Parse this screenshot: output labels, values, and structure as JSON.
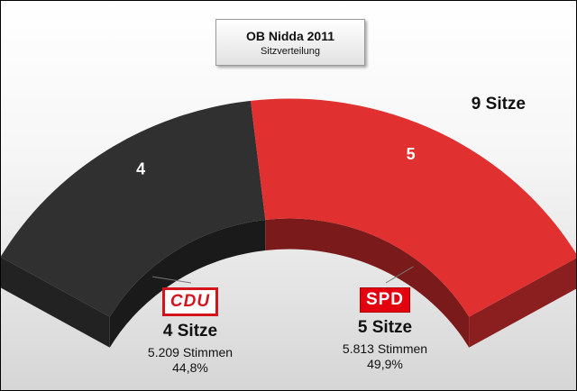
{
  "chart_data": {
    "type": "pie",
    "variant": "semicircle-seat-distribution",
    "title": "OB Nidda 2011",
    "subtitle": "Sitzverteilung",
    "total_label": "9 Sitze",
    "total_seats": 9,
    "series": [
      {
        "name": "CDU",
        "seats": 4,
        "seats_label": "4 Sitze",
        "votes_label": "5.209 Stimmen",
        "percent_label": "44,8%",
        "color": "#303030"
      },
      {
        "name": "SPD",
        "seats": 5,
        "seats_label": "5 Sitze",
        "votes_label": "5.813 Stimmen",
        "percent_label": "49,9%",
        "color": "#e03030"
      }
    ]
  }
}
